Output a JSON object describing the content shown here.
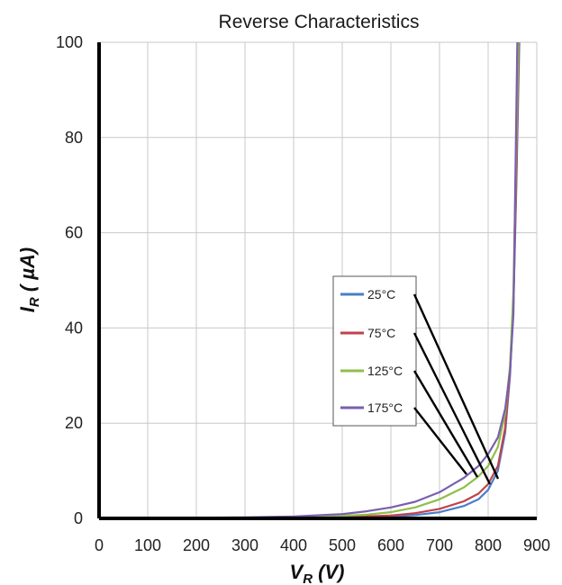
{
  "chart_data": {
    "type": "line",
    "title": "Reverse Characteristics",
    "xlabel": "V_R (V)",
    "ylabel": "I_R ( µA)",
    "xlim": [
      0,
      900
    ],
    "ylim": [
      0,
      100
    ],
    "xticks": [
      "0",
      "100",
      "200",
      "300",
      "400",
      "500",
      "600",
      "700",
      "800",
      "900"
    ],
    "yticks": [
      "0",
      "20",
      "40",
      "60",
      "80",
      "100"
    ],
    "grid": true,
    "legend_position": "center-right",
    "series": [
      {
        "name": "25°C",
        "color": "#4a7ec9",
        "x": [
          0,
          300,
          500,
          600,
          650,
          700,
          750,
          780,
          800,
          820,
          835,
          845,
          852,
          858,
          864
        ],
        "y": [
          0,
          0,
          0.2,
          0.4,
          0.7,
          1.3,
          2.6,
          4,
          6,
          10,
          18,
          30,
          45,
          70,
          100
        ]
      },
      {
        "name": "75°C",
        "color": "#c0424a",
        "x": [
          0,
          300,
          500,
          600,
          650,
          700,
          750,
          780,
          800,
          820,
          835,
          845,
          852,
          858,
          863
        ],
        "y": [
          0,
          0,
          0.3,
          0.6,
          1.1,
          2,
          3.6,
          5.2,
          7.2,
          11,
          19,
          31,
          46,
          72,
          100
        ]
      },
      {
        "name": "125°C",
        "color": "#8fbf4a",
        "x": [
          0,
          300,
          450,
          550,
          600,
          650,
          700,
          750,
          780,
          800,
          820,
          835,
          845,
          852,
          862
        ],
        "y": [
          0,
          0.1,
          0.3,
          0.8,
          1.3,
          2.3,
          4,
          6.5,
          8.8,
          11,
          15,
          22,
          32,
          48,
          100
        ]
      },
      {
        "name": "175°C",
        "color": "#7a5fae",
        "x": [
          0,
          300,
          400,
          500,
          550,
          600,
          650,
          700,
          750,
          780,
          800,
          820,
          835,
          845,
          852,
          860
        ],
        "y": [
          0,
          0.2,
          0.4,
          0.9,
          1.5,
          2.3,
          3.5,
          5.5,
          8.5,
          11,
          13.5,
          17,
          23,
          31,
          43,
          100
        ]
      }
    ]
  }
}
